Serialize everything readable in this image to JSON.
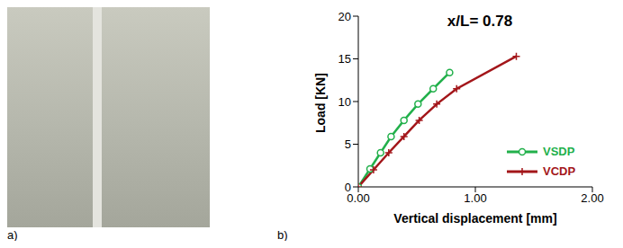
{
  "photo": {
    "panel_label": "a)"
  },
  "chart_data": {
    "type": "line",
    "panel_label": "b)",
    "title": "x/L= 0.78",
    "x_label": "Vertical displacement [mm]",
    "y_label": "Load [KN]",
    "xlim": [
      0,
      2
    ],
    "xticks": [
      {
        "value": 0,
        "label": "0.00"
      },
      {
        "value": 1,
        "label": "1.00"
      },
      {
        "value": 2,
        "label": "2.00"
      }
    ],
    "ylim": [
      0,
      20
    ],
    "yticks": [
      0,
      5,
      10,
      15,
      20
    ],
    "grid": false,
    "legend": "right",
    "series": [
      {
        "name": "VSDP",
        "color": "#22b04b",
        "marker": "circle",
        "x": [
          0,
          0.1,
          0.19,
          0.28,
          0.39,
          0.51,
          0.64,
          0.78
        ],
        "values": [
          0,
          2.1,
          4.0,
          5.9,
          7.8,
          9.7,
          11.5,
          13.4
        ]
      },
      {
        "name": "VCDP",
        "color": "#a3161a",
        "marker": "plus",
        "x": [
          0,
          0.13,
          0.26,
          0.39,
          0.52,
          0.67,
          0.84,
          1.35
        ],
        "values": [
          0,
          2.0,
          4.0,
          5.9,
          7.8,
          9.7,
          11.5,
          15.3
        ]
      }
    ]
  }
}
